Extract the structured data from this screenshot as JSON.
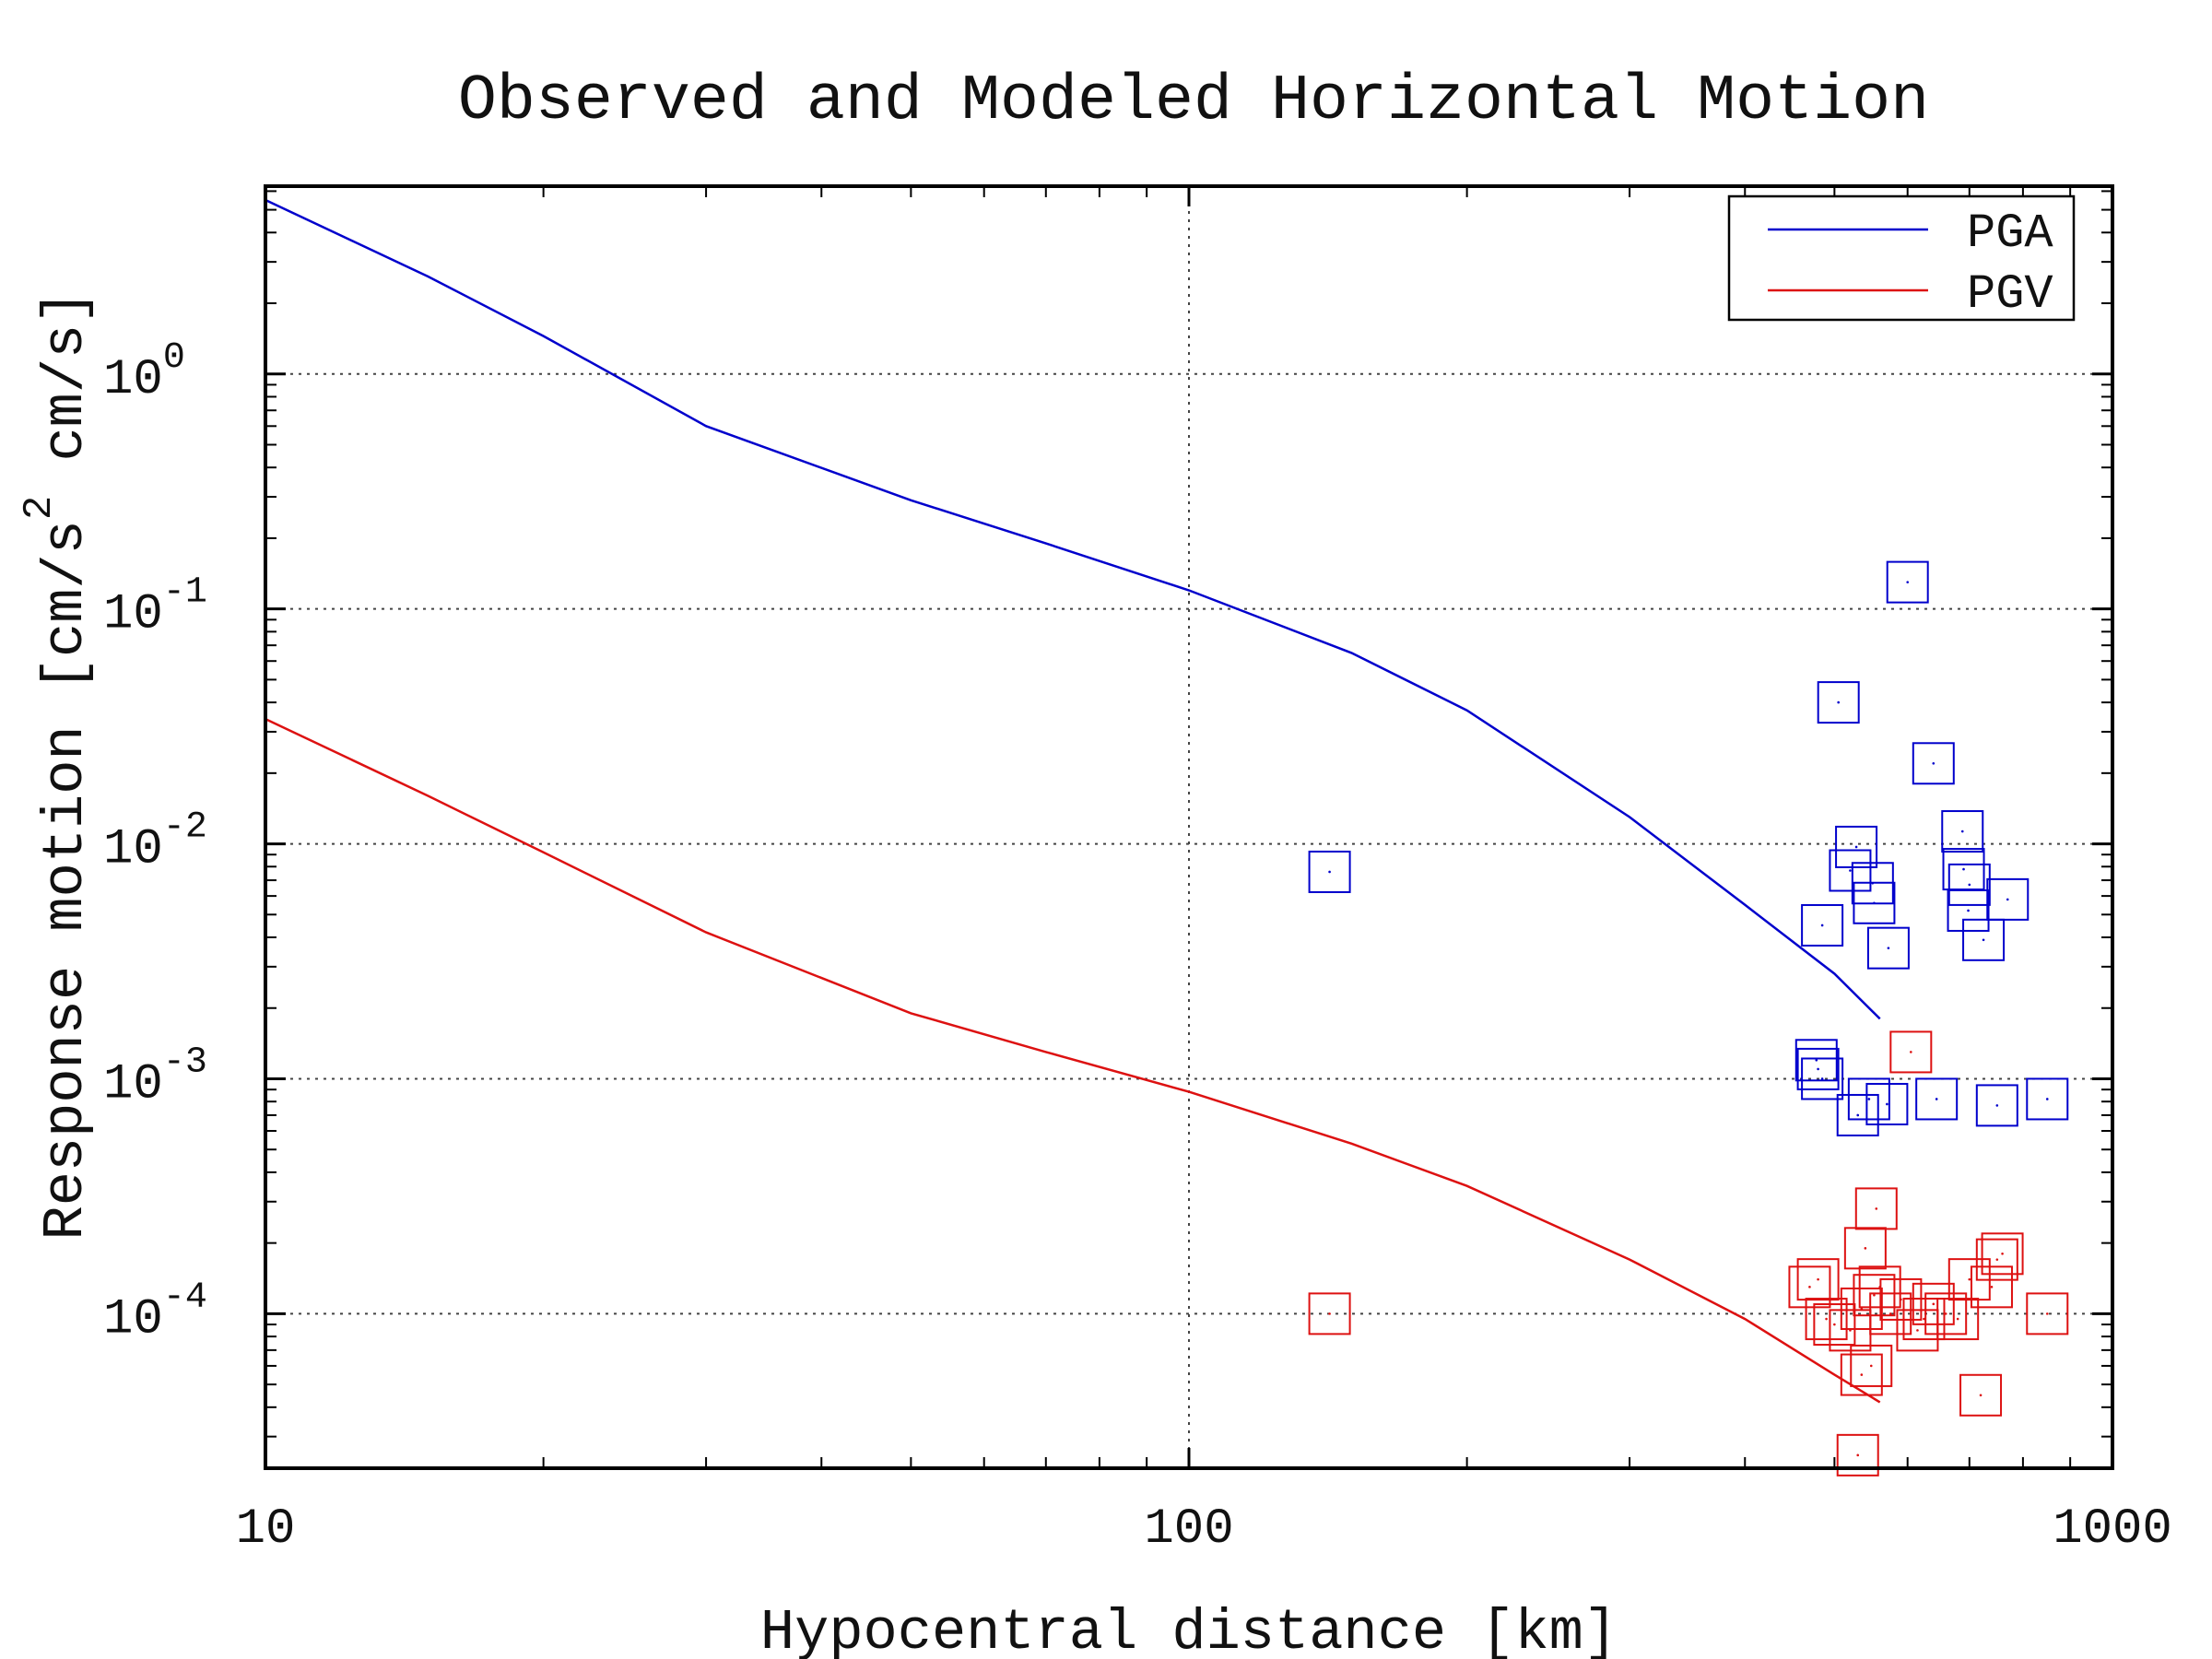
{
  "chart_data": {
    "type": "scatter",
    "title": "Observed and Modeled Horizontal Motion",
    "xlabel": "Hypocentral distance [km]",
    "ylabel": "Response motion  [cm/s",
    "ylabel_sup": "2",
    "ylabel_tail": "  cm/s]",
    "xscale": "log",
    "yscale": "log",
    "xlim": [
      10,
      1000
    ],
    "ylim": [
      2.2e-05,
      6.3
    ],
    "x_ticks": [
      {
        "value": 10,
        "label": "10"
      },
      {
        "value": 100,
        "label": "100"
      },
      {
        "value": 1000,
        "label": "1000"
      }
    ],
    "y_ticks": [
      {
        "value": 1,
        "base": "10",
        "exp": "0"
      },
      {
        "value": 0.1,
        "base": "10",
        "exp": "-1"
      },
      {
        "value": 0.01,
        "base": "10",
        "exp": "-2"
      },
      {
        "value": 0.001,
        "base": "10",
        "exp": "-3"
      },
      {
        "value": 0.0001,
        "base": "10",
        "exp": "-4"
      }
    ],
    "grid": true,
    "legend_position": "top-right",
    "series": [
      {
        "name": "PGA",
        "kind": "line",
        "color": "#0000cc",
        "x": [
          10,
          15,
          20,
          30,
          50,
          70,
          100,
          150,
          200,
          300,
          400,
          500,
          560
        ],
        "y": [
          5.5,
          2.6,
          1.45,
          0.6,
          0.29,
          0.19,
          0.12,
          0.065,
          0.037,
          0.013,
          0.0055,
          0.0028,
          0.0018
        ]
      },
      {
        "name": "PGV",
        "kind": "line",
        "color": "#dd1111",
        "x": [
          10,
          15,
          20,
          30,
          50,
          70,
          100,
          150,
          200,
          300,
          400,
          500,
          560
        ],
        "y": [
          0.034,
          0.016,
          0.0092,
          0.0042,
          0.0019,
          0.0013,
          0.00088,
          0.00053,
          0.00035,
          0.00017,
          9.5e-05,
          5.5e-05,
          4.2e-05
        ]
      },
      {
        "name": "",
        "kind": "markers",
        "marker": "square",
        "color": "#0000cc",
        "x": [
          142,
          485,
          520,
          550,
          600,
          505,
          528,
          552,
          572,
          640,
          688,
          700,
          698,
          690,
          725,
          770,
          478,
          480,
          485,
          530,
          545,
          570,
          645,
          750,
          850
        ],
        "y": [
          0.0076,
          0.0045,
          0.0077,
          0.0068,
          0.13,
          0.04,
          0.0097,
          0.0056,
          0.0036,
          0.022,
          0.0113,
          0.0067,
          0.0052,
          0.0078,
          0.0039,
          0.0058,
          0.0012,
          0.0011,
          0.001,
          0.0007,
          0.00082,
          0.00078,
          0.00082,
          0.00077,
          0.00082
        ]
      },
      {
        "name": "",
        "kind": "markers",
        "marker": "square",
        "color": "#dd1111",
        "x": [
          142,
          605,
          555,
          540,
          530,
          470,
          480,
          490,
          500,
          520,
          535,
          552,
          560,
          575,
          590,
          615,
          625,
          640,
          660,
          680,
          700,
          720,
          740,
          750,
          760,
          850,
          548,
          535
        ],
        "y": [
          0.0001,
          0.0013,
          0.00028,
          0.00019,
          2.5e-05,
          0.00013,
          0.00014,
          9.5e-05,
          9e-05,
          8.5e-05,
          0.000105,
          0.00012,
          0.00013,
          0.0001,
          0.000115,
          8.5e-05,
          9.5e-05,
          0.00011,
          0.0001,
          9.5e-05,
          0.00014,
          4.5e-05,
          0.00013,
          0.00017,
          0.00018,
          0.0001,
          6e-05,
          5.5e-05
        ]
      }
    ]
  }
}
